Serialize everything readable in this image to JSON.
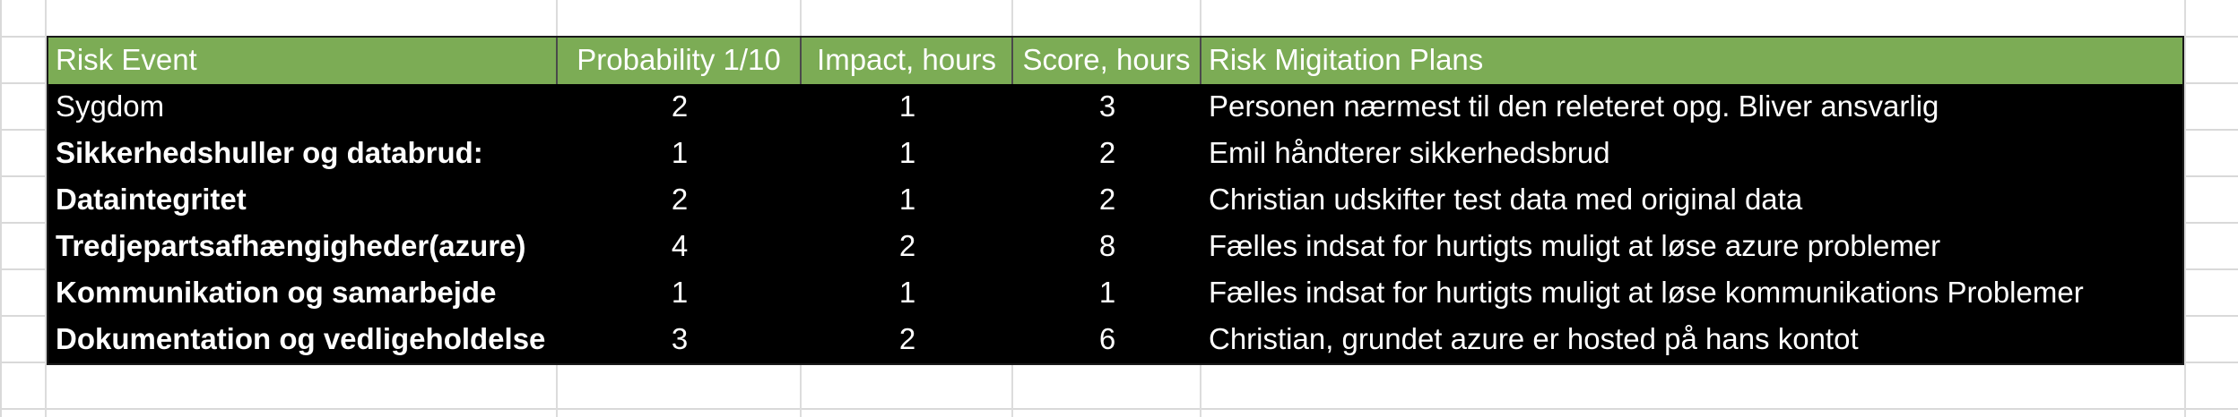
{
  "table": {
    "headers": [
      "Risk Event",
      "Probability 1/10",
      "Impact, hours",
      "Score, hours",
      "Risk Migitation Plans"
    ],
    "rows": [
      [
        "Sygdom",
        "2",
        "1",
        "3",
        "Personen nærmest til den releteret opg. Bliver ansvarlig"
      ],
      [
        "Sikkerhedshuller og databrud:",
        "1",
        "1",
        "2",
        "Emil håndterer sikkerhedsbrud"
      ],
      [
        "Dataintegritet",
        "2",
        "1",
        "2",
        "Christian udskifter test data med original data"
      ],
      [
        "Tredjepartsafhængigheder(azure)",
        "4",
        "2",
        "8",
        "Fælles indsat for hurtigts muligt at løse azure problemer"
      ],
      [
        "Kommunikation og samarbejde",
        "1",
        "1",
        "1",
        "Fælles indsat for hurtigts muligt at løse kommunikations Problemer"
      ],
      [
        "Dokumentation og vedligeholdelse",
        "3",
        "2",
        "6",
        "Christian, grundet azure er hosted på hans kontot"
      ]
    ]
  },
  "colors": {
    "header_bg": "#7cac55",
    "row_bg": "#000000",
    "text": "#ffffff"
  }
}
